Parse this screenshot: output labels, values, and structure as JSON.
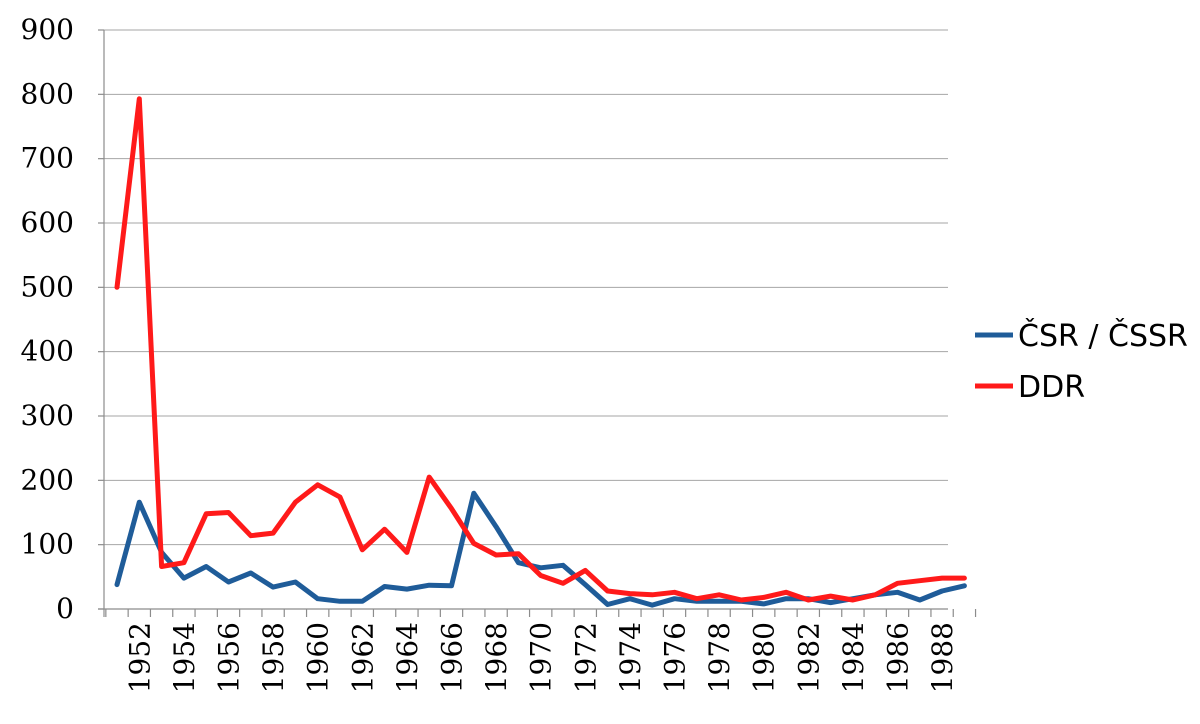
{
  "chart_data": {
    "type": "line",
    "title": "",
    "xlabel": "",
    "ylabel": "",
    "ylim": [
      0,
      900
    ],
    "yticks": [
      0,
      100,
      200,
      300,
      400,
      500,
      600,
      700,
      800,
      900
    ],
    "xticks": [
      1952,
      1954,
      1956,
      1958,
      1960,
      1962,
      1964,
      1966,
      1968,
      1970,
      1972,
      1974,
      1976,
      1978,
      1980,
      1982,
      1984,
      1986,
      1988
    ],
    "x": [
      1951,
      1952,
      1953,
      1954,
      1955,
      1956,
      1957,
      1958,
      1959,
      1960,
      1961,
      1962,
      1963,
      1964,
      1965,
      1966,
      1967,
      1968,
      1969,
      1970,
      1971,
      1972,
      1973,
      1974,
      1975,
      1976,
      1977,
      1978,
      1979,
      1980,
      1981,
      1982,
      1983,
      1984,
      1985,
      1986,
      1987,
      1988,
      1989
    ],
    "grid": true,
    "legend_position": "right",
    "series": [
      {
        "name": "ČSR / ČSSR",
        "color": "#1f5c99",
        "values": [
          38,
          166,
          88,
          48,
          66,
          42,
          56,
          34,
          42,
          16,
          12,
          12,
          35,
          31,
          37,
          36,
          180,
          128,
          72,
          64,
          68,
          38,
          7,
          16,
          6,
          16,
          12,
          12,
          12,
          8,
          16,
          16,
          10,
          16,
          22,
          26,
          14,
          28,
          36
        ]
      },
      {
        "name": "DDR",
        "color": "#ff1a1a",
        "values": [
          500,
          793,
          66,
          72,
          148,
          150,
          114,
          118,
          166,
          193,
          174,
          92,
          124,
          88,
          205,
          156,
          102,
          84,
          86,
          52,
          40,
          60,
          28,
          24,
          22,
          26,
          16,
          22,
          14,
          18,
          26,
          14,
          20,
          14,
          22,
          40,
          44,
          48,
          48
        ]
      }
    ]
  }
}
